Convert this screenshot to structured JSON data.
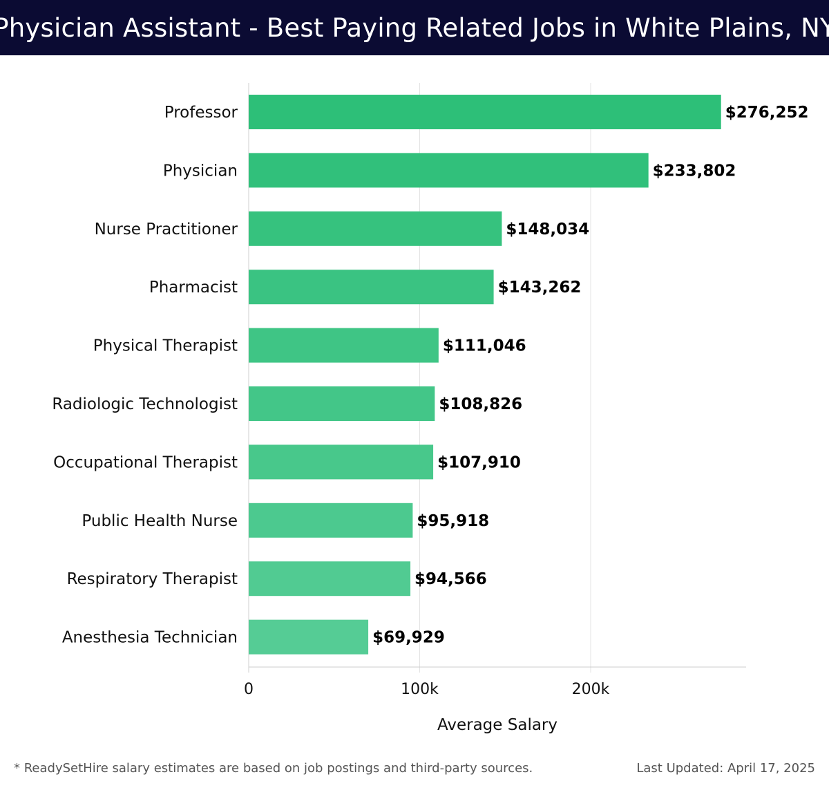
{
  "header": {
    "title": "Physician Assistant - Best Paying Related Jobs in White Plains, NY"
  },
  "chart_data": {
    "type": "bar",
    "orientation": "horizontal",
    "categories": [
      "Professor",
      "Physician",
      "Nurse Practitioner",
      "Pharmacist",
      "Physical Therapist",
      "Radiologic Technologist",
      "Occupational Therapist",
      "Public Health Nurse",
      "Respiratory Therapist",
      "Anesthesia Technician"
    ],
    "values": [
      276252,
      233802,
      148034,
      143262,
      111046,
      108826,
      107910,
      95918,
      94566,
      69929
    ],
    "value_labels": [
      "$276,252",
      "$233,802",
      "$148,034",
      "$143,262",
      "$111,046",
      "$108,826",
      "$107,910",
      "$95,918",
      "$94,566",
      "$69,929"
    ],
    "xlabel": "Average Salary",
    "ylabel": "",
    "xlim": [
      0,
      290000
    ],
    "x_ticks": [
      0,
      100000,
      200000
    ],
    "x_tick_labels": [
      "0",
      "100k",
      "200k"
    ],
    "grid": "vertical",
    "colors": {
      "bar_top": "#2dbf78",
      "bar_bottom": "#55cc95",
      "grid": "#e3e3e3",
      "axis": "#cccccc"
    }
  },
  "footer": {
    "note": "* ReadySetHire salary estimates are based on job postings and third-party sources.",
    "updated": "Last Updated: April 17, 2025"
  }
}
